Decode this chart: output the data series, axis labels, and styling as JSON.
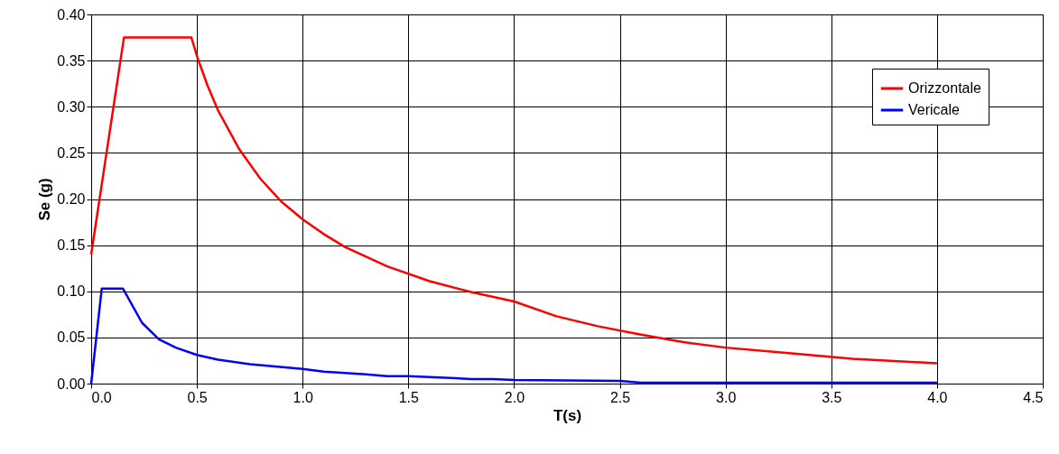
{
  "chart_data": {
    "type": "line",
    "xlabel": "T(s)",
    "ylabel": "Se (g)",
    "xlim": [
      0,
      4.5
    ],
    "ylim": [
      0,
      0.4
    ],
    "xticks": [
      {
        "value": 0,
        "label": "0.0"
      },
      {
        "value": 0.5,
        "label": "0.5"
      },
      {
        "value": 1,
        "label": "1.0"
      },
      {
        "value": 1.5,
        "label": "1.5"
      },
      {
        "value": 2,
        "label": "2.0"
      },
      {
        "value": 2.5,
        "label": "2.5"
      },
      {
        "value": 3,
        "label": "3.0"
      },
      {
        "value": 3.5,
        "label": "3.5"
      },
      {
        "value": 4,
        "label": "4.0"
      },
      {
        "value": 4.5,
        "label": "4.5"
      }
    ],
    "yticks": [
      {
        "value": 0,
        "label": "0.00"
      },
      {
        "value": 0.05,
        "label": "0.05"
      },
      {
        "value": 0.1,
        "label": "0.10"
      },
      {
        "value": 0.15,
        "label": "0.15"
      },
      {
        "value": 0.2,
        "label": "0.20"
      },
      {
        "value": 0.25,
        "label": "0.25"
      },
      {
        "value": 0.3,
        "label": "0.30"
      },
      {
        "value": 0.35,
        "label": "0.35"
      },
      {
        "value": 0.4,
        "label": "0.40"
      }
    ],
    "grid": true,
    "legend": "top right",
    "marker": "none",
    "line_style": "solid",
    "series": [
      {
        "name": "Orizzontale",
        "color": "#ff0000",
        "x": [
          0,
          0.155,
          0.474,
          0.5,
          0.55,
          0.6,
          0.7,
          0.8,
          0.9,
          1.0,
          1.1,
          1.2,
          1.4,
          1.6,
          1.8,
          2.0,
          2.2,
          2.4,
          2.6,
          2.8,
          3.0,
          3.3,
          3.6,
          4.0
        ],
        "values": [
          0.14,
          0.375,
          0.375,
          0.355,
          0.323,
          0.296,
          0.254,
          0.222,
          0.197,
          0.178,
          0.162,
          0.148,
          0.127,
          0.111,
          0.099,
          0.089,
          0.073,
          0.062,
          0.053,
          0.045,
          0.039,
          0.033,
          0.027,
          0.022
        ]
      },
      {
        "name": "Vericale",
        "color": "#0000ff",
        "x": [
          0,
          0.05,
          0.15,
          0.24,
          0.32,
          0.4,
          0.5,
          0.6,
          0.75,
          1.0,
          1.1,
          1.3,
          1.4,
          1.5,
          1.6,
          1.7,
          1.8,
          1.9,
          2.0,
          2.5,
          2.6,
          4.0
        ],
        "values": [
          0,
          0.103,
          0.103,
          0.066,
          0.048,
          0.039,
          0.031,
          0.026,
          0.021,
          0.016,
          0.013,
          0.01,
          0.008,
          0.008,
          0.007,
          0.006,
          0.005,
          0.005,
          0.004,
          0.003,
          0.001,
          0.001
        ]
      }
    ]
  }
}
